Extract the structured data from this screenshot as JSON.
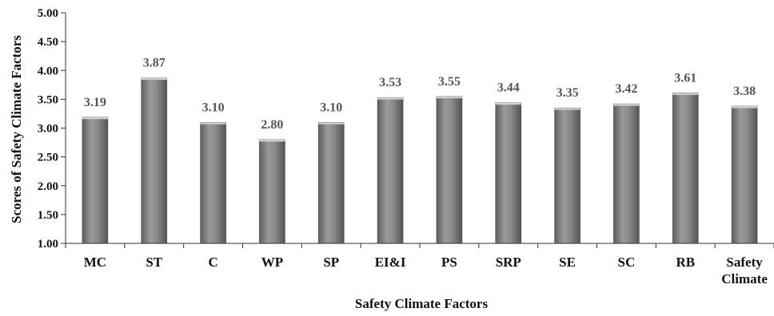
{
  "chart_data": {
    "type": "bar",
    "categories": [
      "MC",
      "ST",
      "C",
      "WP",
      "SP",
      "EI&I",
      "PS",
      "SRP",
      "SE",
      "SC",
      "RB",
      "Safety Climate"
    ],
    "values": [
      3.19,
      3.87,
      3.1,
      2.8,
      3.1,
      3.53,
      3.55,
      3.44,
      3.35,
      3.42,
      3.61,
      3.38
    ],
    "data_labels": [
      "3.19",
      "3.87",
      "3.10",
      "2.80",
      "3.10",
      "3.53",
      "3.55",
      "3.44",
      "3.35",
      "3.42",
      "3.61",
      "3.38"
    ],
    "y_ticks": [
      "1.00",
      "1.50",
      "2.00",
      "2.50",
      "3.00",
      "3.50",
      "4.00",
      "4.50",
      "5.00"
    ],
    "title": "",
    "xlabel": "Safety Climate Factors",
    "ylabel": "Scores of Safety Climate Factors",
    "ylim": [
      1.0,
      5.0
    ],
    "grid": false,
    "legend": "none",
    "bar_color": "#7a7a7a"
  }
}
